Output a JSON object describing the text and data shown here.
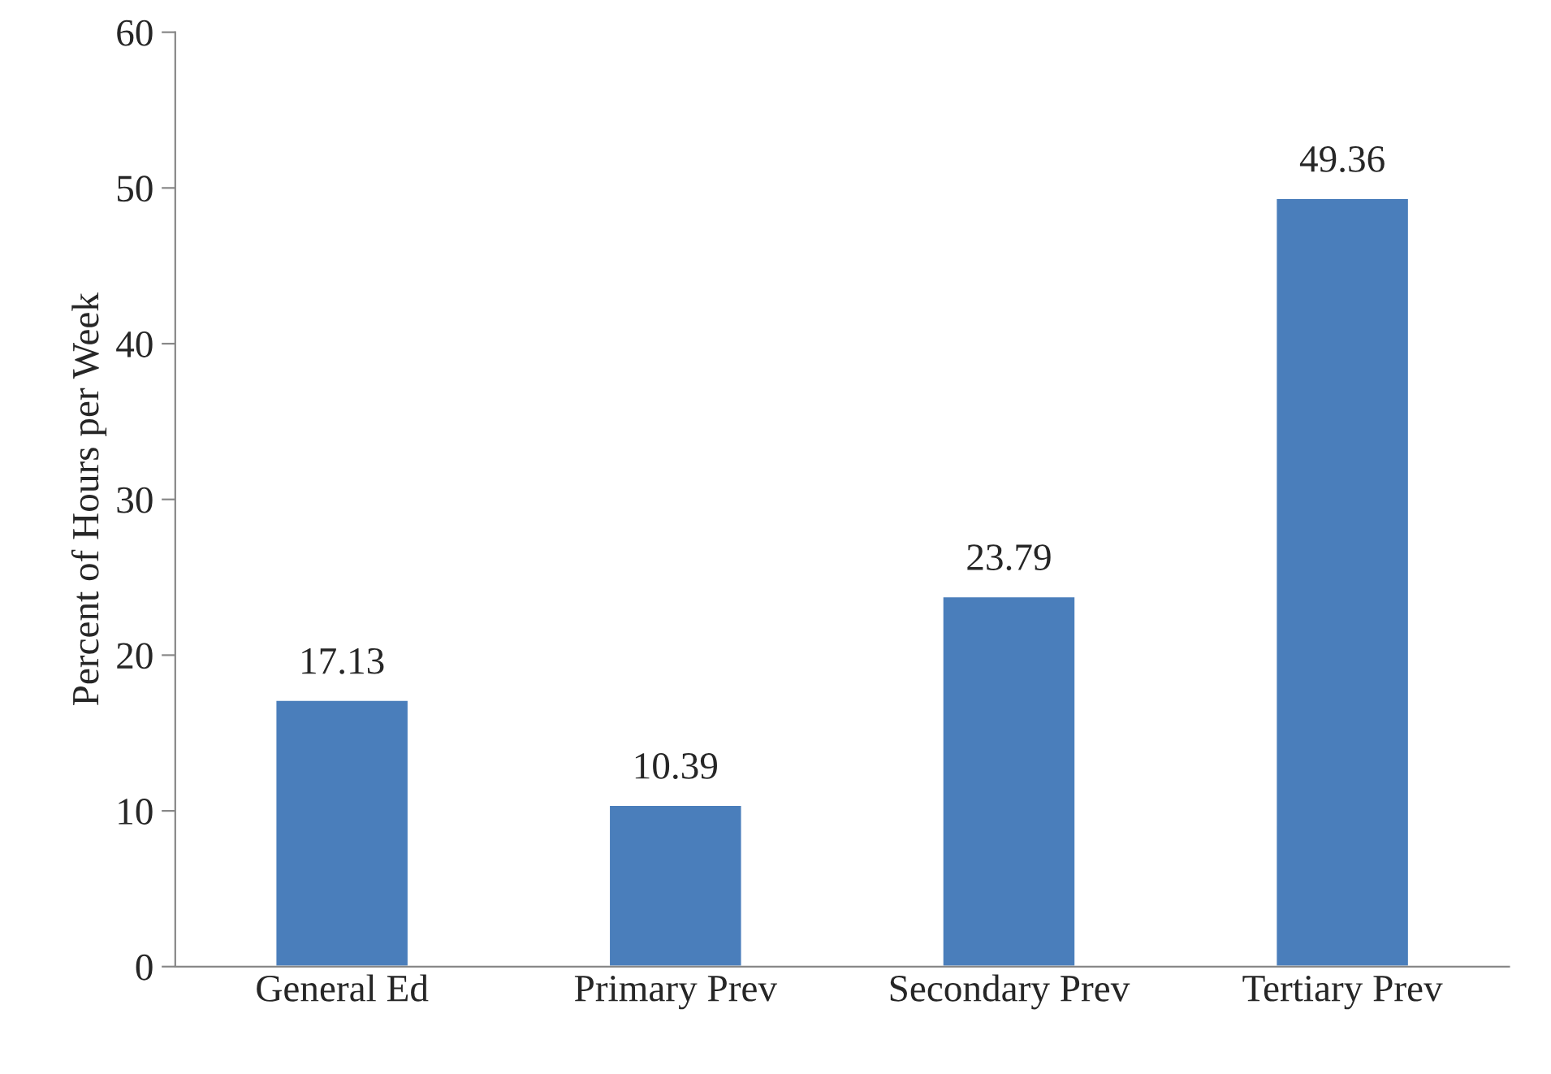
{
  "chart_data": {
    "type": "bar",
    "ylabel": "Percent of Hours per Week",
    "categories": [
      "General Ed",
      "Primary Prev",
      "Secondary Prev",
      "Tertiary Prev"
    ],
    "values": [
      17.13,
      10.39,
      23.79,
      49.36
    ],
    "color": "#4a7ebb",
    "ylim": [
      0,
      60
    ],
    "yticks": [
      0,
      10,
      20,
      30,
      40,
      50,
      60
    ],
    "grid": false,
    "data_labels": true,
    "legend": false
  }
}
